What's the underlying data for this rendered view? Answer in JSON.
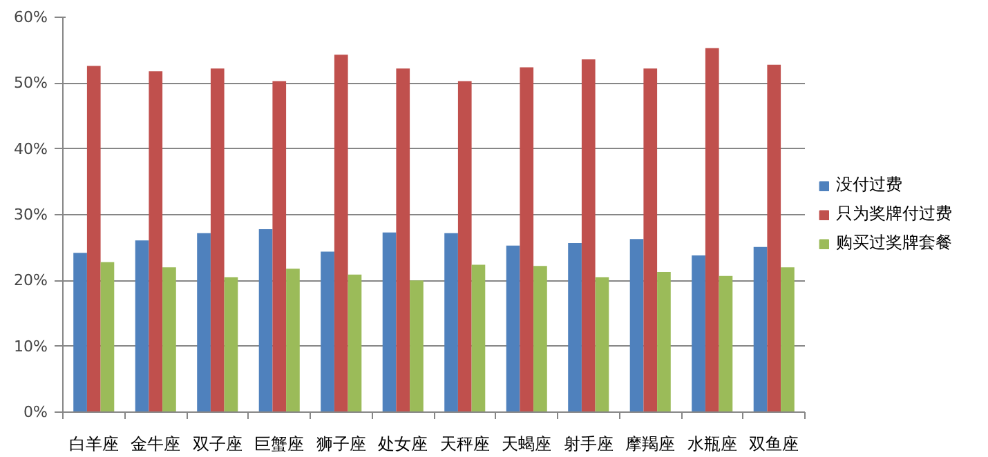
{
  "chart_data": {
    "type": "bar",
    "categories": [
      "白羊座",
      "金牛座",
      "双子座",
      "巨蟹座",
      "狮子座",
      "处女座",
      "天秤座",
      "天蝎座",
      "射手座",
      "摩羯座",
      "水瓶座",
      "双鱼座"
    ],
    "series": [
      {
        "name": "没付过费",
        "color": "#4f81bd",
        "values": [
          24.2,
          26.1,
          27.2,
          27.8,
          24.4,
          27.3,
          27.2,
          25.3,
          25.7,
          26.3,
          23.8,
          25.1
        ]
      },
      {
        "name": "只为奖牌付过费",
        "color": "#c0504d",
        "values": [
          52.6,
          51.8,
          52.2,
          50.3,
          54.3,
          52.2,
          50.3,
          52.4,
          53.6,
          52.2,
          55.3,
          52.8
        ]
      },
      {
        "name": "购买过奖牌套餐",
        "color": "#9bbb59",
        "values": [
          22.8,
          22.0,
          20.5,
          21.8,
          20.9,
          20.0,
          22.4,
          22.2,
          20.5,
          21.3,
          20.7,
          22.0
        ]
      }
    ],
    "ylim": [
      0,
      60
    ],
    "yticks": [
      {
        "value": 0,
        "label": "0%"
      },
      {
        "value": 10,
        "label": "10%"
      },
      {
        "value": 20,
        "label": "20%"
      },
      {
        "value": 30,
        "label": "30%"
      },
      {
        "value": 40,
        "label": "40%"
      },
      {
        "value": 50,
        "label": "50%"
      },
      {
        "value": 60,
        "label": "60%"
      }
    ],
    "grid": "y",
    "legend": "right"
  }
}
